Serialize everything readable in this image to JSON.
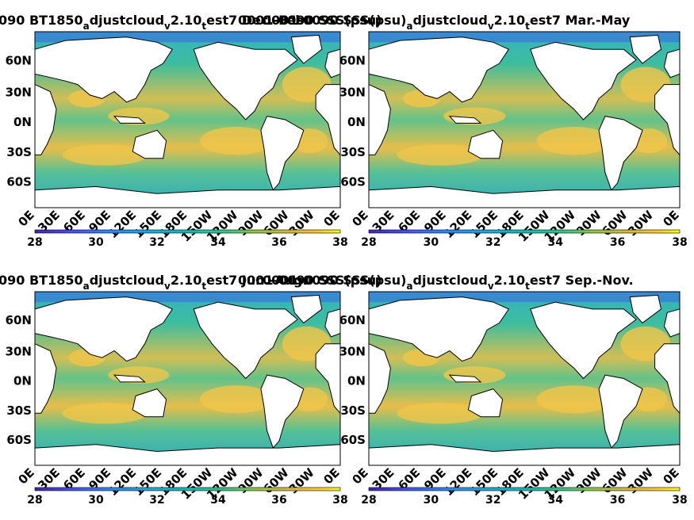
{
  "figure": {
    "panels": [
      {
        "title_main": "090 BT1850",
        "title_segments": [
          {
            "text": "a",
            "sub": true
          },
          {
            "text": "djustcloud",
            "sub": false
          },
          {
            "text": "v",
            "sub": true
          },
          {
            "text": "2.10",
            "sub": false
          },
          {
            "text": "t",
            "sub": true
          },
          {
            "text": "est7 Dec.-Feb.",
            "sub": false
          }
        ],
        "overlap_title": "0001-0090 SSS(psu)"
      },
      {
        "title_main": "0001-0090 SSS(psu)",
        "title_segments": [
          {
            "text": "a",
            "sub": true
          },
          {
            "text": "djustcloud",
            "sub": false
          },
          {
            "text": "v",
            "sub": true
          },
          {
            "text": "2.10",
            "sub": false
          },
          {
            "text": "t",
            "sub": true
          },
          {
            "text": "est7 Mar.-May",
            "sub": false
          }
        ],
        "overlap_title": "BT1850"
      },
      {
        "title_main": "090 BT1850",
        "title_segments": [
          {
            "text": "a",
            "sub": true
          },
          {
            "text": "djustcloud",
            "sub": false
          },
          {
            "text": "v",
            "sub": true
          },
          {
            "text": "2.10",
            "sub": false
          },
          {
            "text": "t",
            "sub": true
          },
          {
            "text": "est7 Jun.-Aug.",
            "sub": false
          }
        ],
        "overlap_title": "0001-0090 SSS(psu)"
      },
      {
        "title_main": "0001-0090 SSS(psu)",
        "title_segments": [
          {
            "text": "a",
            "sub": true
          },
          {
            "text": "djustcloud",
            "sub": false
          },
          {
            "text": "v",
            "sub": true
          },
          {
            "text": "2.10",
            "sub": false
          },
          {
            "text": "t",
            "sub": true
          },
          {
            "text": "est7 Sep.-Nov.",
            "sub": false
          }
        ],
        "overlap_title": "BT1850"
      }
    ],
    "lat_ticks": [
      "60N",
      "30N",
      "0N",
      "30S",
      "60S"
    ],
    "lon_ticks": [
      "0E",
      "30E",
      "60E",
      "90E",
      "120E",
      "150E",
      "180E",
      "150W",
      "120W",
      "90W",
      "60W",
      "30W",
      "0E"
    ],
    "colorbar": {
      "ticks": [
        "28",
        "30",
        "32",
        "34",
        "36",
        "38"
      ],
      "range": [
        28,
        38
      ],
      "colormap": [
        "#3e26a8",
        "#4a4ff3",
        "#2e87f7",
        "#1fa8d8",
        "#15b9b3",
        "#33c38c",
        "#8fc34b",
        "#d8b93a",
        "#fbc932",
        "#f9fb15"
      ]
    },
    "colors": {
      "ocean_fresh": "#2ca6ba",
      "ocean_mid": "#41bd9c",
      "ocean_salty": "#f0c64a",
      "land": "#ffffff",
      "coast": "#000000"
    }
  }
}
